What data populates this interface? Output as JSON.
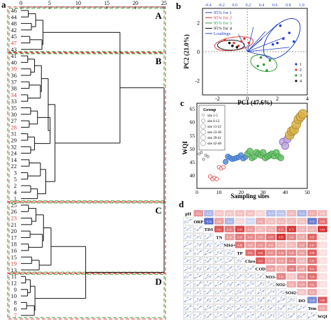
{
  "colors": {
    "black": "#111111",
    "red": "#e03a3a",
    "green": "#2e9b3a",
    "blue": "#2440c8",
    "orange": "#c48a2a",
    "panelDash": "#3aa23a"
  },
  "panels": {
    "a": {
      "letter": "a",
      "x_ticks": [
        "0",
        "5",
        "10",
        "15",
        "20",
        "25"
      ],
      "cluster_labels": [
        "A",
        "B",
        "C",
        "D"
      ],
      "clusters": {
        "A": [
          "46",
          "44",
          "48",
          "42",
          "45",
          "47",
          "43"
        ],
        "B": [
          "41",
          "40",
          "39",
          "36",
          "37",
          "38",
          "34",
          "33",
          "35",
          "30",
          "27",
          "28",
          "31",
          "29",
          "32",
          "24",
          "14",
          "22",
          "3",
          "5",
          "2",
          "4",
          "1"
        ],
        "C": [
          "25",
          "26",
          "23",
          "21",
          "20",
          "17",
          "18",
          "16",
          "15",
          "19",
          "13"
        ],
        "D": [
          "11",
          "12",
          "9",
          "10",
          "8",
          "6",
          "7"
        ]
      },
      "red_labels": [
        "47",
        "39",
        "34",
        "28",
        "23",
        "19",
        "7"
      ]
    },
    "b": {
      "letter": "b",
      "xlabel": "PC1 (47.6%)",
      "ylabel": "PC2 (21.0%)",
      "x_ticks": [
        "-2",
        "0",
        "2",
        "4"
      ],
      "y_ticks_left": [
        "2",
        "0",
        "-2"
      ],
      "top_ticks": [
        "-0.4",
        "-0.2",
        "0.0",
        "0.2",
        "0.4",
        "0.6",
        "0.8",
        "1.0"
      ],
      "legend": [
        "95% for 1",
        "95% for 2",
        "95% for 3",
        "95% for 4",
        "Loadings"
      ],
      "mini_legend": [
        "1",
        "2",
        "3",
        "4"
      ]
    },
    "c": {
      "letter": "c",
      "xlabel": "Sampling sites",
      "ylabel": "WQI",
      "legend_title": "Group",
      "legend_items": [
        "site 1-5",
        "site 6-12",
        "site 13-22",
        "site 23-38",
        "site 39-41",
        "site 42-48"
      ],
      "x_ticks": [
        "0",
        "10",
        "20",
        "30",
        "40",
        "50"
      ],
      "y_ticks": [
        "40",
        "45",
        "50",
        "55",
        "60",
        "65"
      ]
    },
    "d": {
      "letter": "d",
      "variables": [
        "pH",
        "ORP",
        "TDS",
        "TN",
        "NH4+",
        "TP",
        "Chro",
        "COD",
        "NO3-",
        "NO2-",
        "SO42-",
        "DO",
        "Tem",
        "WQI"
      ]
    }
  },
  "chart_data": [
    {
      "type": "dendrogram",
      "panel": "a",
      "x_range": [
        0,
        25
      ],
      "leaf_order": [
        "46",
        "44",
        "48",
        "42",
        "45",
        "47",
        "43",
        "41",
        "40",
        "39",
        "36",
        "37",
        "38",
        "34",
        "33",
        "35",
        "30",
        "27",
        "28",
        "31",
        "29",
        "32",
        "24",
        "14",
        "22",
        "3",
        "5",
        "2",
        "4",
        "1",
        "25",
        "26",
        "23",
        "21",
        "20",
        "17",
        "18",
        "16",
        "15",
        "19",
        "13",
        "11",
        "12",
        "9",
        "10",
        "8",
        "6",
        "7"
      ],
      "clusters": [
        {
          "name": "A",
          "first_leaf": "46",
          "last_leaf": "43"
        },
        {
          "name": "B",
          "first_leaf": "41",
          "last_leaf": "1"
        },
        {
          "name": "C",
          "first_leaf": "25",
          "last_leaf": "13"
        },
        {
          "name": "D",
          "first_leaf": "11",
          "last_leaf": "7"
        }
      ],
      "merge_distances": {
        "A": 5.5,
        "B": 8.5,
        "C": 7.5,
        "D": 3.5,
        "B+A": 17.3,
        "C+D": 11.3,
        "root": 25
      }
    },
    {
      "type": "scatter",
      "panel": "b",
      "xlabel": "PC1 (47.6%)",
      "ylabel": "PC2 (21.0%)",
      "xlim": [
        -3,
        4
      ],
      "ylim": [
        -3,
        3
      ],
      "series": [
        {
          "name": "1",
          "points": [
            [
              2.0,
              0.6
            ],
            [
              2.4,
              0.9
            ],
            [
              2.8,
              1.3
            ],
            [
              3.1,
              0.7
            ],
            [
              2.2,
              1.8
            ],
            [
              1.7,
              0.5
            ]
          ]
        },
        {
          "name": "2",
          "points": [
            [
              -1.5,
              0.8
            ],
            [
              -0.9,
              0.6
            ],
            [
              -0.4,
              0.7
            ],
            [
              0.1,
              0.6
            ],
            [
              -0.2,
              0.9
            ],
            [
              -0.6,
              0.4
            ]
          ]
        },
        {
          "name": "3",
          "points": [
            [
              0.9,
              -0.4
            ],
            [
              1.1,
              -0.9
            ],
            [
              1.3,
              -1.3
            ],
            [
              0.7,
              -1.0
            ],
            [
              1.5,
              -0.6
            ]
          ]
        },
        {
          "name": "4",
          "points": [
            [
              -1.0,
              0.4
            ],
            [
              -0.7,
              0.3
            ],
            [
              -1.2,
              0.6
            ]
          ]
        }
      ]
    },
    {
      "type": "scatter",
      "panel": "c",
      "xlabel": "Sampling sites",
      "ylabel": "WQI",
      "xlim": [
        0,
        50
      ],
      "ylim": [
        35,
        67
      ],
      "series": [
        {
          "name": "site 1-5",
          "points": [
            [
              1,
              48
            ],
            [
              2,
              48.5
            ],
            [
              3,
              46
            ],
            [
              4,
              47.5
            ],
            [
              5,
              47
            ]
          ]
        },
        {
          "name": "site 6-12",
          "points": [
            [
              6,
              39.5
            ],
            [
              7,
              38.5
            ],
            [
              8,
              39
            ],
            [
              9,
              38.5
            ],
            [
              10,
              43
            ],
            [
              11,
              42.5
            ],
            [
              12,
              43
            ]
          ]
        },
        {
          "name": "site 13-22",
          "points": [
            [
              13,
              45
            ],
            [
              14,
              47
            ],
            [
              15,
              46.5
            ],
            [
              16,
              46
            ],
            [
              17,
              46.2
            ],
            [
              18,
              46.5
            ],
            [
              19,
              46.8
            ],
            [
              20,
              47.5
            ],
            [
              21,
              46.2
            ],
            [
              22,
              46.8
            ]
          ]
        },
        {
          "name": "site 23-38",
          "points": [
            [
              23,
              48
            ],
            [
              24,
              49
            ],
            [
              25,
              46.5
            ],
            [
              26,
              47
            ],
            [
              27,
              48.5
            ],
            [
              28,
              48
            ],
            [
              29,
              47.5
            ],
            [
              30,
              48.5
            ],
            [
              31,
              46.5
            ],
            [
              32,
              47
            ],
            [
              33,
              47.5
            ],
            [
              34,
              48
            ],
            [
              35,
              47.2
            ],
            [
              36,
              48.5
            ],
            [
              37,
              47
            ],
            [
              38,
              46.5
            ]
          ]
        },
        {
          "name": "site 39-41",
          "points": [
            [
              39,
              52.5
            ],
            [
              40,
              51
            ],
            [
              41,
              53.5
            ]
          ]
        },
        {
          "name": "site 42-48",
          "points": [
            [
              42,
              55
            ],
            [
              43,
              56.5
            ],
            [
              44,
              57
            ],
            [
              45,
              59
            ],
            [
              46,
              61
            ],
            [
              47,
              62
            ],
            [
              48,
              63
            ]
          ]
        }
      ]
    },
    {
      "type": "heatmap",
      "panel": "d",
      "variables": [
        "pH",
        "ORP",
        "TDS",
        "TN",
        "NH4+",
        "TP",
        "Chro",
        "COD",
        "NO3-",
        "NO2-",
        "SO42-",
        "DO",
        "Tem",
        "WQI"
      ],
      "correlations": [
        [
          -0.19,
          0.33,
          -0.21,
          0.11,
          0.11,
          0.14,
          0.13,
          0.05,
          -0.18,
          -0.14,
          0.18,
          -0.23,
          0.23,
          0.16
        ],
        [
          -0.56,
          0.28,
          -0.22,
          0.04,
          -0.05,
          0.26,
          0.15,
          0.18,
          0.17,
          0.14,
          -0.51,
          0.49,
          0.48
        ],
        [
          0.61,
          0.45,
          0.69,
          0.32,
          0.17,
          0.21,
          0.53,
          0.75,
          0.2,
          0.21,
          0.84
        ],
        [
          0.29,
          0.45,
          0.39,
          0.35,
          0.5,
          0.85,
          0.41,
          0.25,
          0.55
        ],
        [
          0.48,
          0.29,
          0.35,
          0.32,
          0.18,
          0.17,
          0.32,
          0.47
        ],
        [
          0.51,
          0.63,
          0.37,
          0.4,
          0.39,
          0.29,
          0.58
        ],
        [
          0.61,
          0.29,
          0.3,
          0.42,
          0.18,
          0.49
        ],
        [
          0.28,
          0.21,
          0.45,
          0.28,
          0.51
        ],
        [
          0.41,
          0.11,
          0.33,
          0.52
        ],
        [
          0.22,
          0.3,
          0.42
        ],
        [
          0.11,
          0.25
        ],
        [
          -0.43,
          0.58
        ],
        [
          0.26
        ]
      ]
    }
  ]
}
